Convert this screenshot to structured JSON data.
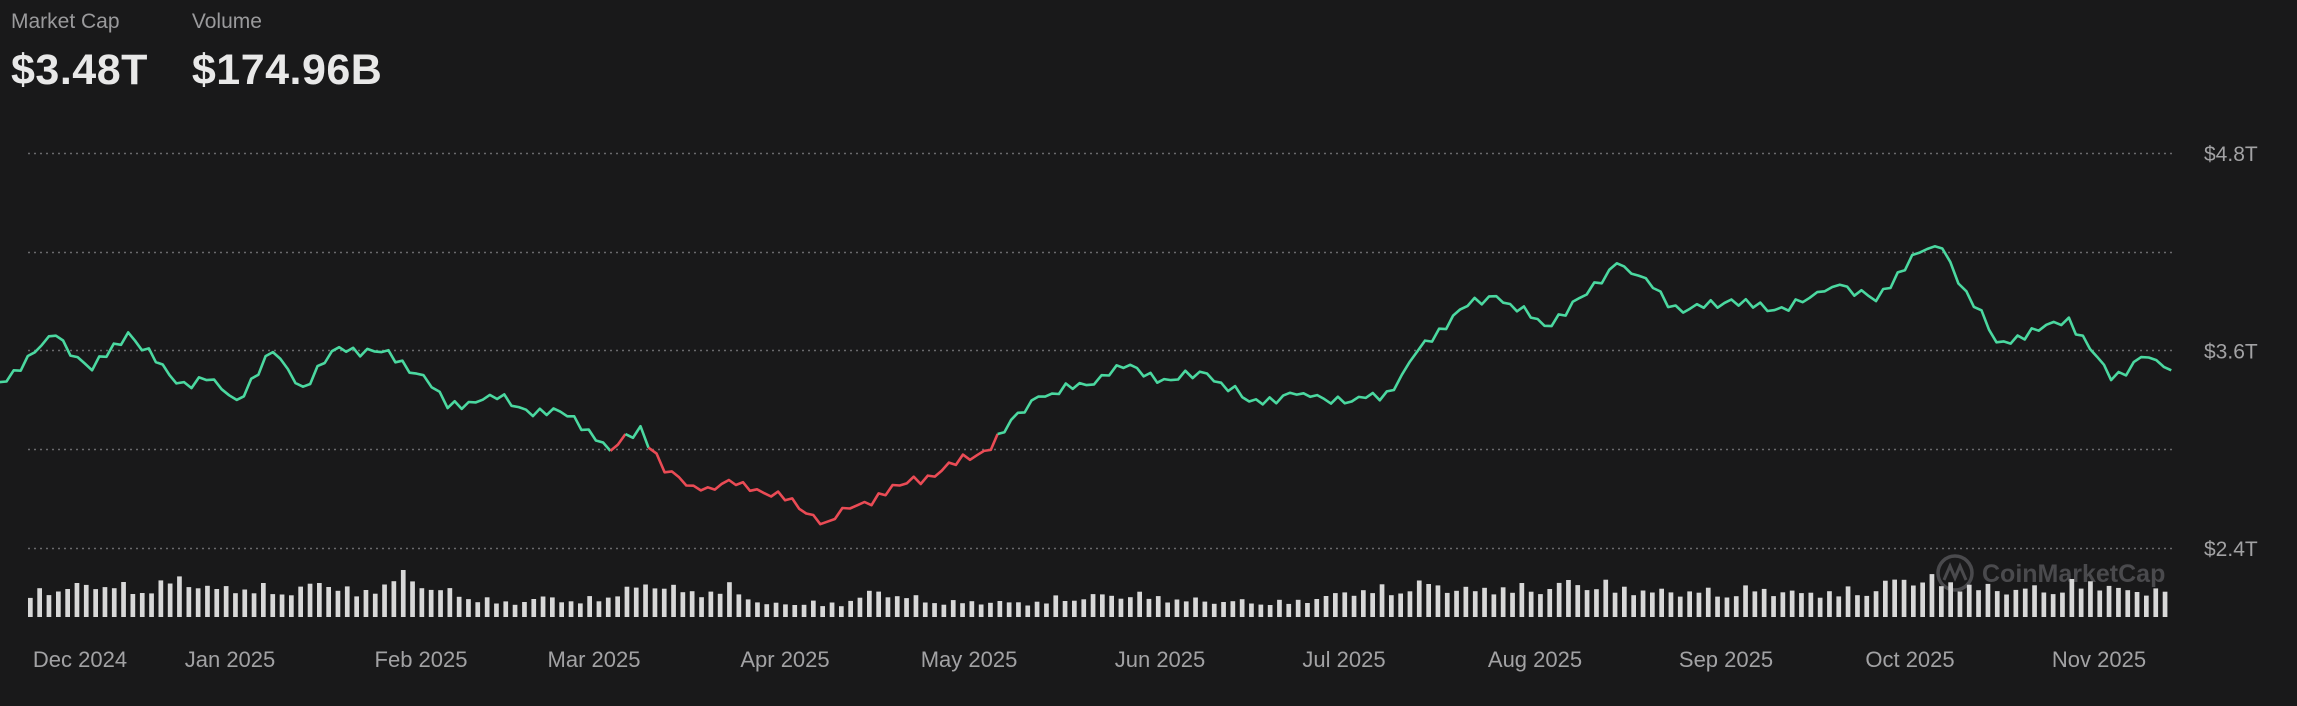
{
  "header": {
    "market_cap_label": "Market Cap",
    "market_cap_value": "$3.48T",
    "volume_label": "Volume",
    "volume_value": "$174.96B"
  },
  "watermark": "CoinMarketCap",
  "colors": {
    "background": "#19191a",
    "up": "#4bd8a0",
    "down": "#ea4b55",
    "grid": "#6a6a6d",
    "volume_bar": "#d8d8d8"
  },
  "chart_data": {
    "type": "line",
    "title": "",
    "xlabel": "",
    "ylabel": "",
    "grid": true,
    "ylim": [
      2.4,
      4.8
    ],
    "y_ticks": [
      "$2.4T",
      "$3.6T",
      "$4.8T"
    ],
    "y_tick_values": [
      2.4,
      3.6,
      4.8
    ],
    "x_ticks": [
      "Dec 2024",
      "Jan 2025",
      "Feb 2025",
      "Mar 2025",
      "Apr 2025",
      "May 2025",
      "Jun 2025",
      "Jul 2025",
      "Aug 2025",
      "Sep 2025",
      "Oct 2025",
      "Nov 2025"
    ],
    "series": [
      {
        "values_unit": "trillion USD",
        "x": [
          "2024-11-14",
          "2024-11-20",
          "2024-11-27",
          "2024-12-03",
          "2024-12-09",
          "2024-12-17",
          "2024-12-22",
          "2024-12-27",
          "2025-01-02",
          "2025-01-07",
          "2025-01-13",
          "2025-01-20",
          "2025-01-27",
          "2025-01-31",
          "2025-02-07",
          "2025-02-13",
          "2025-02-21",
          "2025-02-27",
          "2025-03-04",
          "2025-03-08",
          "2025-03-14",
          "2025-03-21",
          "2025-03-28",
          "2025-04-04",
          "2025-04-09",
          "2025-04-16",
          "2025-04-23",
          "2025-04-30",
          "2025-05-09",
          "2025-05-17",
          "2025-05-22",
          "2025-05-31",
          "2025-06-06",
          "2025-06-13",
          "2025-06-22",
          "2025-06-30",
          "2025-07-07",
          "2025-07-11",
          "2025-07-18",
          "2025-07-24",
          "2025-08-01",
          "2025-08-08",
          "2025-08-13",
          "2025-08-19",
          "2025-08-24",
          "2025-09-01",
          "2025-09-07",
          "2025-09-14",
          "2025-09-19",
          "2025-09-25",
          "2025-10-01",
          "2025-10-06",
          "2025-10-10",
          "2025-10-15",
          "2025-10-22",
          "2025-10-27",
          "2025-11-03",
          "2025-11-08",
          "2025-11-13"
        ],
        "values": [
          3.28,
          3.48,
          3.69,
          3.48,
          3.71,
          3.4,
          3.42,
          3.3,
          3.59,
          3.38,
          3.62,
          3.59,
          3.45,
          3.25,
          3.33,
          3.24,
          3.2,
          2.99,
          3.14,
          2.86,
          2.75,
          2.8,
          2.69,
          2.56,
          2.66,
          2.78,
          2.87,
          2.99,
          3.32,
          3.39,
          3.51,
          3.42,
          3.46,
          3.29,
          3.34,
          3.29,
          3.36,
          3.6,
          3.85,
          3.93,
          3.75,
          3.94,
          4.13,
          3.98,
          3.83,
          3.91,
          3.84,
          3.92,
          4.0,
          3.9,
          4.18,
          4.22,
          3.96,
          3.65,
          3.72,
          3.8,
          3.42,
          3.56,
          3.48
        ],
        "baseline": 3.03
      }
    ],
    "volume": {
      "unit": "billion USD",
      "values": [
        150,
        180,
        205,
        160,
        235,
        170,
        185,
        150,
        220,
        135,
        260,
        175,
        120,
        85,
        120,
        95,
        155,
        210,
        145,
        180,
        75,
        90,
        80,
        160,
        115,
        90,
        95,
        85,
        115,
        130,
        140,
        110,
        100,
        95,
        90,
        115,
        165,
        170,
        205,
        165,
        180,
        175,
        215,
        190,
        155,
        160,
        150,
        175,
        145,
        155,
        165,
        250,
        215,
        180,
        170,
        175,
        220,
        155,
        175
      ]
    }
  }
}
